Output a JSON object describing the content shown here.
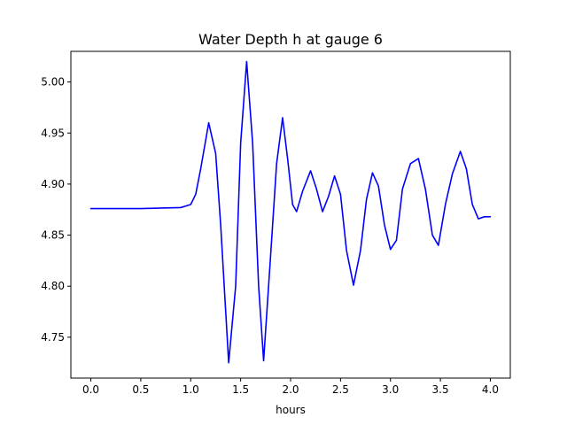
{
  "chart_data": {
    "type": "line",
    "title": "Water Depth h at gauge 6",
    "xlabel": "hours",
    "ylabel": "",
    "xlim": [
      -0.2,
      4.2
    ],
    "ylim": [
      4.71,
      5.03
    ],
    "xticks": [
      0.0,
      0.5,
      1.0,
      1.5,
      2.0,
      2.5,
      3.0,
      3.5,
      4.0
    ],
    "xtick_labels": [
      "0.0",
      "0.5",
      "1.0",
      "1.5",
      "2.0",
      "2.5",
      "3.0",
      "3.5",
      "4.0"
    ],
    "yticks": [
      4.75,
      4.8,
      4.85,
      4.9,
      4.95,
      5.0
    ],
    "ytick_labels": [
      "4.75",
      "4.80",
      "4.85",
      "4.90",
      "4.95",
      "5.00"
    ],
    "grid": false,
    "legend": false,
    "series": [
      {
        "color": "#0000ff",
        "x": [
          0.0,
          0.5,
          0.9,
          1.0,
          1.05,
          1.1,
          1.18,
          1.25,
          1.3,
          1.38,
          1.45,
          1.5,
          1.56,
          1.62,
          1.68,
          1.73,
          1.8,
          1.86,
          1.92,
          1.97,
          2.02,
          2.06,
          2.12,
          2.2,
          2.26,
          2.32,
          2.38,
          2.44,
          2.5,
          2.56,
          2.63,
          2.7,
          2.76,
          2.82,
          2.88,
          2.94,
          3.0,
          3.06,
          3.12,
          3.2,
          3.28,
          3.35,
          3.42,
          3.48,
          3.55,
          3.62,
          3.7,
          3.76,
          3.82,
          3.88,
          3.94,
          4.0
        ],
        "y": [
          4.876,
          4.876,
          4.877,
          4.88,
          4.89,
          4.915,
          4.96,
          4.93,
          4.86,
          4.725,
          4.8,
          4.94,
          5.02,
          4.94,
          4.8,
          4.727,
          4.83,
          4.92,
          4.965,
          4.925,
          4.88,
          4.873,
          4.893,
          4.913,
          4.895,
          4.873,
          4.888,
          4.908,
          4.89,
          4.835,
          4.801,
          4.835,
          4.885,
          4.911,
          4.898,
          4.86,
          4.836,
          4.845,
          4.895,
          4.92,
          4.925,
          4.895,
          4.85,
          4.84,
          4.88,
          4.91,
          4.932,
          4.915,
          4.88,
          4.866,
          4.868,
          4.868
        ]
      }
    ]
  }
}
